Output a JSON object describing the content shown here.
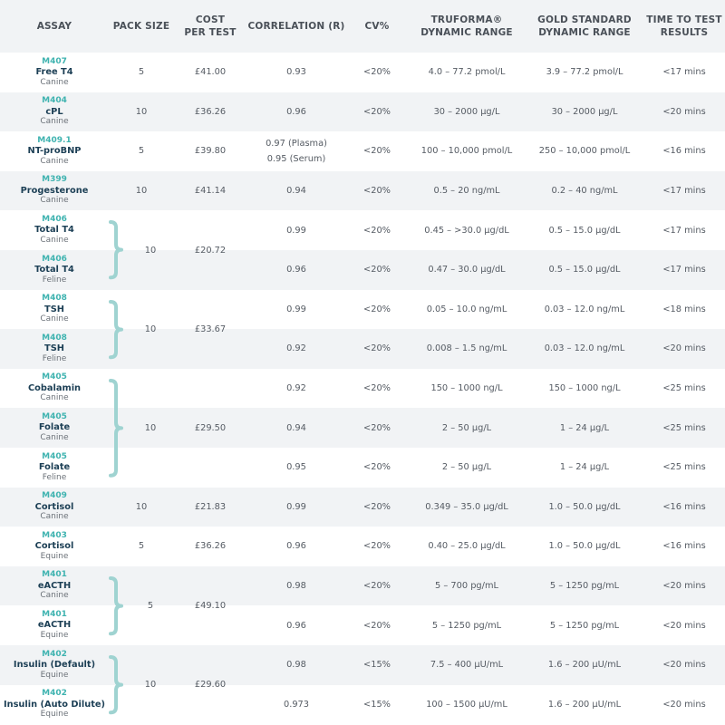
{
  "headers": [
    "ASSAY",
    "PACK SIZE",
    "COST\nPER TEST",
    "CORRELATION (R)",
    "CV%",
    "TRUFORMA®\nDYNAMIC RANGE",
    "GOLD STANDARD\nDYNAMIC RANGE",
    "TIME TO TEST\nRESULTS"
  ],
  "rows": [
    {
      "code": "M407",
      "name": "Free T4",
      "species": "Canine",
      "pack": "5",
      "cost": "£41.00",
      "corr": [
        "0.93"
      ],
      "cv": "<20%",
      "tru": "4.0 – 77.2 pmol/L",
      "gold": "3.9 – 77.2 pmol/L",
      "time": "<17 mins"
    },
    {
      "code": "M404",
      "name": "cPL",
      "species": "Canine",
      "pack": "10",
      "cost": "£36.26",
      "corr": [
        "0.96"
      ],
      "cv": "<20%",
      "tru": "30 – 2000 µg/L",
      "gold": "30 – 2000 µg/L",
      "time": "<20 mins"
    },
    {
      "code": "M409.1",
      "name": "NT-proBNP",
      "species": "Canine",
      "pack": "5",
      "cost": "£39.80",
      "corr": [
        "0.97 (Plasma)",
        "0.95 (Serum)"
      ],
      "cv": "<20%",
      "tru": "100 – 10,000 pmol/L",
      "gold": "250 – 10,000 pmol/L",
      "time": "<16 mins"
    },
    {
      "code": "M399",
      "name": "Progesterone",
      "species": "Canine",
      "pack": "10",
      "cost": "£41.14",
      "corr": [
        "0.94"
      ],
      "cv": "<20%",
      "tru": "0.5 – 20 ng/mL",
      "gold": "0.2 – 40 ng/mL",
      "time": "<17 mins"
    },
    {
      "code": "M406",
      "name": "Total T4",
      "species": "Canine",
      "pack": "",
      "cost": "",
      "corr": [
        "0.99"
      ],
      "cv": "<20%",
      "tru": "0.45 – >30.0 µg/dL",
      "gold": "0.5 – 15.0 µg/dL",
      "time": "<17 mins"
    },
    {
      "code": "M406",
      "name": "Total T4",
      "species": "Feline",
      "pack": "",
      "cost": "",
      "corr": [
        "0.96"
      ],
      "cv": "<20%",
      "tru": "0.47 – 30.0 µg/dL",
      "gold": "0.5 – 15.0 µg/dL",
      "time": "<17 mins"
    },
    {
      "code": "M408",
      "name": "TSH",
      "species": "Canine",
      "pack": "",
      "cost": "",
      "corr": [
        "0.99"
      ],
      "cv": "<20%",
      "tru": "0.05 – 10.0 ng/mL",
      "gold": "0.03 – 12.0 ng/mL",
      "time": "<18 mins"
    },
    {
      "code": "M408",
      "name": "TSH",
      "species": "Feline",
      "pack": "",
      "cost": "",
      "corr": [
        "0.92"
      ],
      "cv": "<20%",
      "tru": "0.008 – 1.5 ng/mL",
      "gold": "0.03 – 12.0 ng/mL",
      "time": "<20 mins"
    },
    {
      "code": "M405",
      "name": "Cobalamin",
      "species": "Canine",
      "pack": "",
      "cost": "",
      "corr": [
        "0.92"
      ],
      "cv": "<20%",
      "tru": "150 – 1000 ng/L",
      "gold": "150 – 1000 ng/L",
      "time": "<25 mins"
    },
    {
      "code": "M405",
      "name": "Folate",
      "species": "Canine",
      "pack": "",
      "cost": "",
      "corr": [
        "0.94"
      ],
      "cv": "<20%",
      "tru": "2 – 50 µg/L",
      "gold": "1 – 24 µg/L",
      "time": "<25 mins"
    },
    {
      "code": "M405",
      "name": "Folate",
      "species": "Feline",
      "pack": "",
      "cost": "",
      "corr": [
        "0.95"
      ],
      "cv": "<20%",
      "tru": "2 – 50 µg/L",
      "gold": "1 – 24 µg/L",
      "time": "<25 mins"
    },
    {
      "code": "M409",
      "name": "Cortisol",
      "species": "Canine",
      "pack": "10",
      "cost": "£21.83",
      "corr": [
        "0.99"
      ],
      "cv": "<20%",
      "tru": "0.349 – 35.0 µg/dL",
      "gold": "1.0 – 50.0 µg/dL",
      "time": "<16 mins"
    },
    {
      "code": "M403",
      "name": "Cortisol",
      "species": "Equine",
      "pack": "5",
      "cost": "£36.26",
      "corr": [
        "0.96"
      ],
      "cv": "<20%",
      "tru": "0.40 – 25.0 µg/dL",
      "gold": "1.0 – 50.0 µg/dL",
      "time": "<16 mins"
    },
    {
      "code": "M401",
      "name": "eACTH",
      "species": "Canine",
      "pack": "",
      "cost": "",
      "corr": [
        "0.98"
      ],
      "cv": "<20%",
      "tru": "5 – 700 pg/mL",
      "gold": "5 – 1250 pg/mL",
      "time": "<20 mins"
    },
    {
      "code": "M401",
      "name": "eACTH",
      "species": "Equine",
      "pack": "",
      "cost": "",
      "corr": [
        "0.96"
      ],
      "cv": "<20%",
      "tru": "5 – 1250 pg/mL",
      "gold": "5 – 1250 pg/mL",
      "time": "<20 mins"
    },
    {
      "code": "M402",
      "name": "Insulin (Default)",
      "species": "Equine",
      "pack": "",
      "cost": "",
      "corr": [
        "0.98"
      ],
      "cv": "<15%",
      "tru": "7.5 – 400 µU/mL",
      "gold": "1.6 – 200 µU/mL",
      "time": "<20 mins"
    },
    {
      "code": "M402",
      "name": "Insulin (Auto Dilute)",
      "species": "Equine",
      "pack": "",
      "cost": "",
      "corr": [
        "0.973"
      ],
      "cv": "<15%",
      "tru": "100 – 1500 µU/mL",
      "gold": "1.6 – 200 µU/mL",
      "time": "<20 mins"
    }
  ],
  "groups": [
    {
      "first": 4,
      "last": 5,
      "pack": "10",
      "cost": "£20.72"
    },
    {
      "first": 6,
      "last": 7,
      "pack": "10",
      "cost": "£33.67"
    },
    {
      "first": 8,
      "last": 10,
      "pack": "10",
      "cost": "£29.50"
    },
    {
      "first": 13,
      "last": 14,
      "pack": "5",
      "cost": "£49.10"
    },
    {
      "first": 15,
      "last": 16,
      "pack": "10",
      "cost": "£29.60"
    }
  ],
  "colors": {
    "accent": "#3fb3b0",
    "name": "#1c3f55",
    "text": "#555b63",
    "stripe": "#f1f3f5",
    "brace": "#9fd3d1"
  }
}
